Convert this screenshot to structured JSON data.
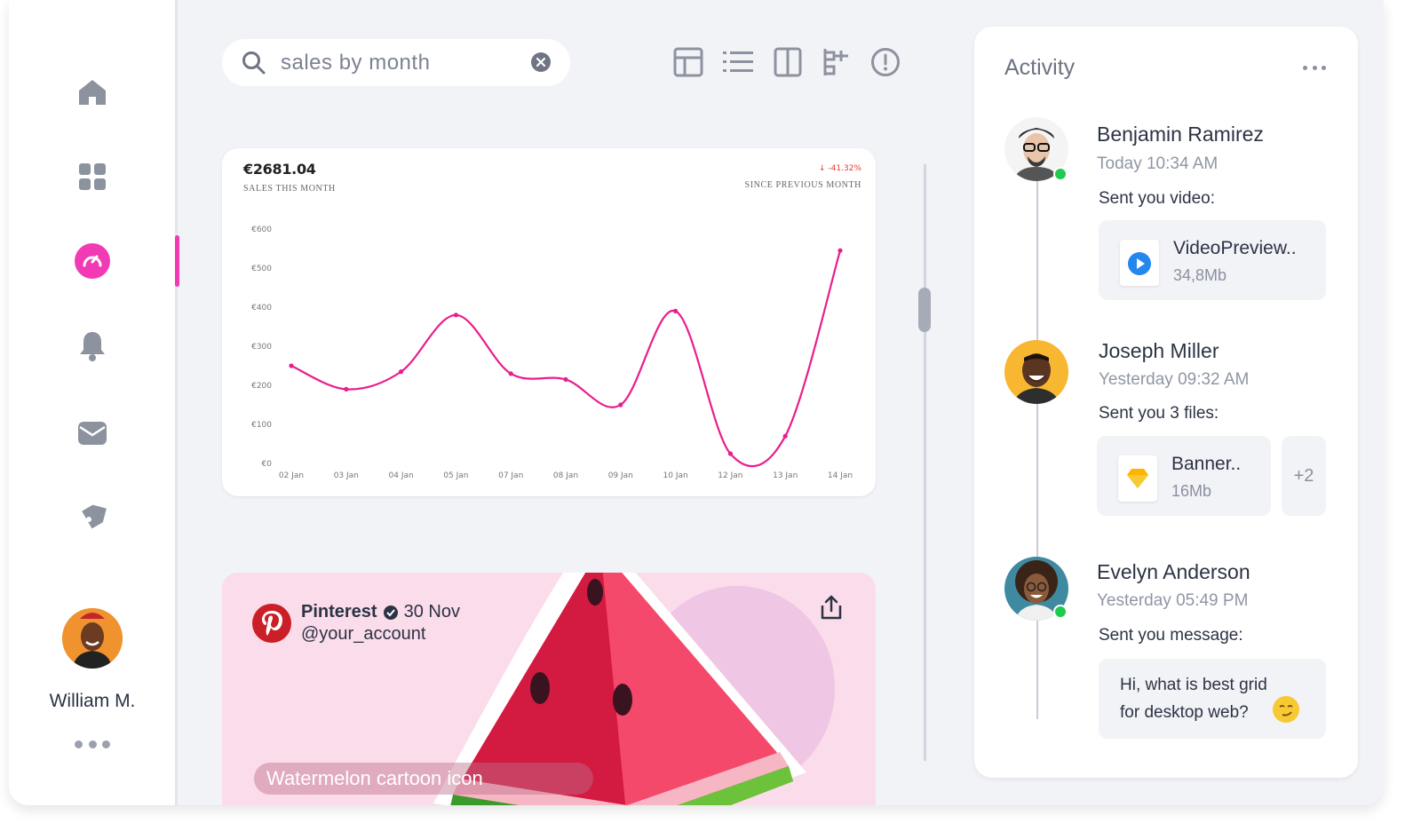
{
  "sidebar": {
    "items": [
      {
        "name": "home",
        "icon": "home-icon"
      },
      {
        "name": "dashboard",
        "icon": "grid-icon"
      },
      {
        "name": "analytics",
        "icon": "gauge-icon",
        "active": true
      },
      {
        "name": "notifications",
        "icon": "bell-icon"
      },
      {
        "name": "messages",
        "icon": "mail-icon"
      },
      {
        "name": "tags",
        "icon": "tag-icon"
      }
    ],
    "user": {
      "name": "William M."
    },
    "accent": "#f23ab4"
  },
  "search": {
    "value": "sales by month",
    "clear_icon": "close-icon"
  },
  "toolbar": {
    "buttons": [
      "table-layout-icon",
      "list-icon",
      "columns-icon",
      "flow-icon",
      "alert-icon"
    ]
  },
  "sales_card": {
    "amount": "€2681.04",
    "amount_label": "Sales this month",
    "change": "-41.32%",
    "change_label": "Since Previous Month",
    "change_color": "#e53935"
  },
  "chart_data": {
    "type": "line",
    "categories": [
      "02 Jan",
      "03 Jan",
      "04 Jan",
      "05 Jan",
      "07 Jan",
      "08 Jan",
      "09 Jan",
      "10 Jan",
      "12 Jan",
      "13 Jan",
      "14 Jan"
    ],
    "values": [
      250,
      190,
      235,
      380,
      230,
      215,
      150,
      390,
      25,
      70,
      545
    ],
    "ylim": [
      0,
      600
    ],
    "yticks": [
      "€0",
      "€100",
      "€200",
      "€300",
      "€400",
      "€500",
      "€600"
    ],
    "line_color": "#e91e8c",
    "grid": false
  },
  "pin": {
    "source": "Pinterest",
    "date": "30 Nov",
    "account": "@your_account",
    "caption": "Watermelon cartoon icon"
  },
  "activity": {
    "title": "Activity",
    "items": [
      {
        "name": "Benjamin Ramirez",
        "time": "Today 10:34 AM",
        "message": "Sent you video:",
        "file": {
          "name": "VideoPreview..",
          "size": "34,8Mb"
        },
        "online": true
      },
      {
        "name": "Joseph Miller",
        "time": "Yesterday 09:32 AM",
        "message": "Sent you 3 files:",
        "file": {
          "name": "Banner..",
          "size": "16Mb"
        },
        "more": "+2",
        "online": false
      },
      {
        "name": "Evelyn Anderson",
        "time": "Yesterday 05:49 PM",
        "message": "Sent you message:",
        "text": "Hi, what is best grid for desktop web?",
        "online": true
      }
    ]
  }
}
